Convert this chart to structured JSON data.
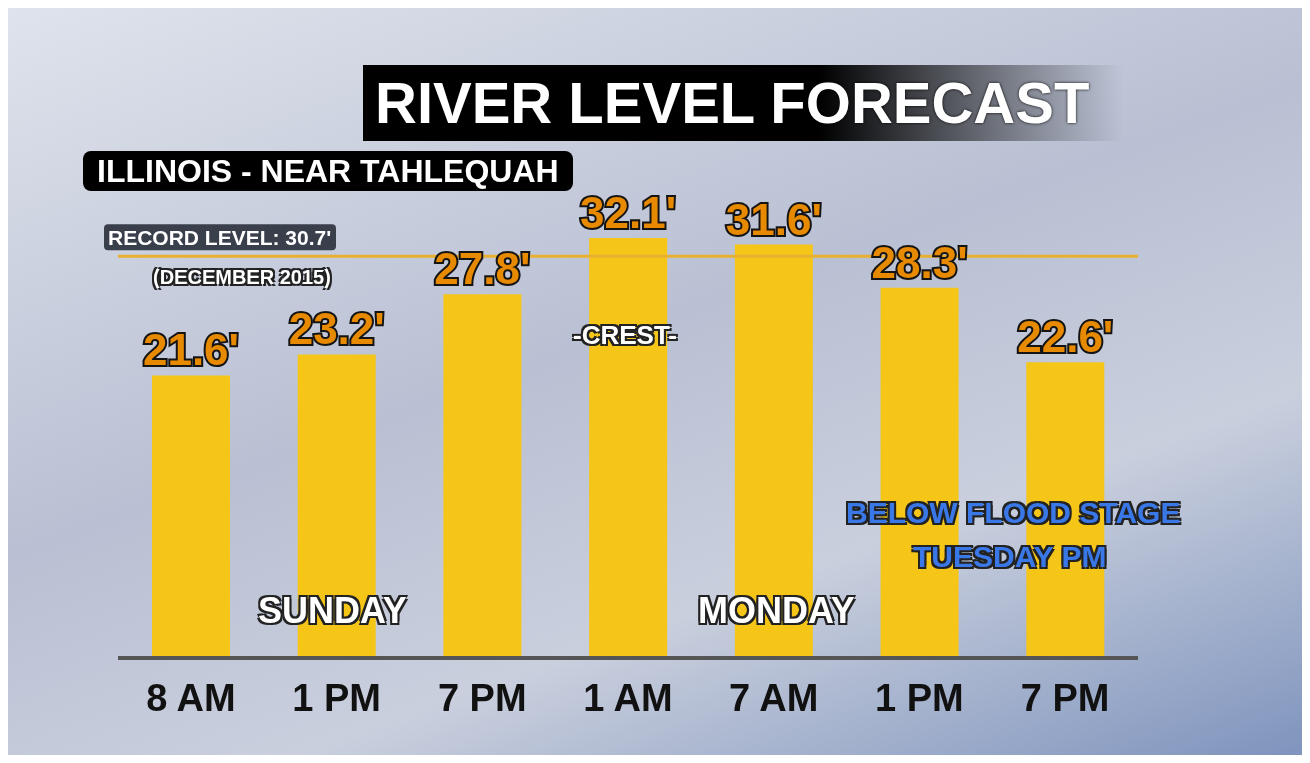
{
  "chart_data": {
    "type": "bar",
    "title": "RIVER LEVEL FORECAST",
    "subtitle": "ILLINOIS - NEAR TAHLEQUAH",
    "categories": [
      "8 AM",
      "1 PM",
      "7 PM",
      "1 AM",
      "7 AM",
      "1 PM",
      "7 PM"
    ],
    "values": [
      21.6,
      23.2,
      27.8,
      32.1,
      31.6,
      28.3,
      22.6
    ],
    "value_labels": [
      "21.6'",
      "23.2'",
      "27.8'",
      "32.1'",
      "31.6'",
      "28.3'",
      "22.6'"
    ],
    "color": "#f5c518",
    "ref_lines": [
      {
        "axis": "y",
        "value": 30.7,
        "label": "RECORD LEVEL: 30.7'",
        "color": "#e8b030"
      }
    ],
    "annotations": [
      "(DECEMBER 2015)",
      "-CREST-",
      "SUNDAY",
      "MONDAY",
      "BELOW FLOOD STAGE",
      "TUESDAY PM"
    ],
    "grid": false,
    "legend": false
  }
}
